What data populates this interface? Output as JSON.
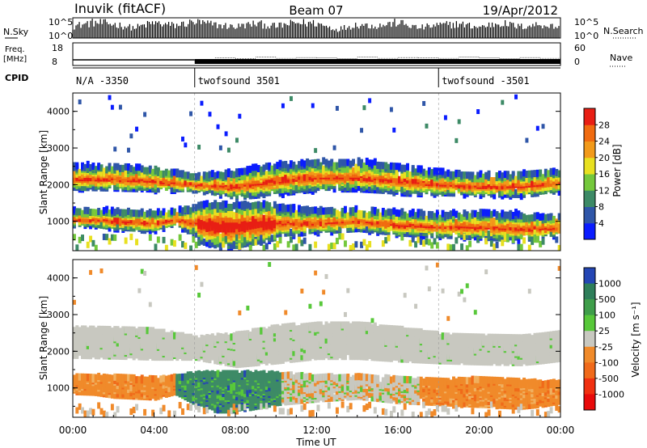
{
  "header": {
    "station": "Inuvik (fitACF)",
    "beam": "Beam 07",
    "date": "19/Apr/2012"
  },
  "nsky_panel": {
    "left_label": "N.Sky",
    "left_ticks": [
      "10^5",
      "10^0"
    ],
    "right_ticks": [
      "10^5",
      "10^0"
    ],
    "right_label": "N.Search"
  },
  "freq_panel": {
    "left_label_line1": "Freq.",
    "left_label_line2": "[MHz]",
    "left_ticks": [
      "18",
      "8"
    ],
    "right_ticks": [
      "60",
      "0"
    ],
    "right_label": "Nave"
  },
  "cpid_panel": {
    "label": "CPID",
    "segments": [
      {
        "start_h": 0,
        "text": "N/A -3350"
      },
      {
        "start_h": 6,
        "text": "twofsound 3501"
      },
      {
        "start_h": 18,
        "text": "twofsound -3501"
      }
    ]
  },
  "chart_data": [
    {
      "type": "heatmap",
      "title": "",
      "xlabel": "Time UT",
      "ylabel": "Slant Range [km]",
      "x_range_hours": [
        0,
        24
      ],
      "ylim": [
        200,
        4500
      ],
      "yticks": [
        "1000",
        "2000",
        "3000",
        "4000"
      ],
      "colorbar": {
        "label": "Power [dB]",
        "ticks": [
          "4",
          "8",
          "12",
          "16",
          "20",
          "24",
          "28"
        ],
        "colors": [
          "#0a1cff",
          "#2f56a8",
          "#3d8a66",
          "#74c83c",
          "#e8e020",
          "#f29a1a",
          "#f06b10",
          "#e81e14"
        ]
      },
      "bands": [
        {
          "name": "upper",
          "t": [
            0,
            2,
            4,
            5,
            6,
            8,
            10,
            12,
            14,
            16,
            18,
            20,
            22,
            23,
            24
          ],
          "center_km": [
            2200,
            2200,
            2150,
            2100,
            2050,
            2000,
            2150,
            2250,
            2250,
            2150,
            2050,
            2000,
            2000,
            2050,
            2100
          ],
          "width_km": [
            300,
            320,
            300,
            250,
            200,
            350,
            400,
            380,
            380,
            350,
            300,
            280,
            300,
            300,
            280
          ]
        },
        {
          "name": "lower",
          "t": [
            0,
            1,
            2,
            4,
            5,
            6,
            7,
            8,
            10,
            12,
            14,
            16,
            18,
            20,
            22,
            23,
            24
          ],
          "center_km": [
            1100,
            1100,
            1050,
            1000,
            1100,
            1000,
            900,
            900,
            1000,
            1000,
            1050,
            950,
            900,
            900,
            850,
            850,
            900
          ],
          "width_km": [
            200,
            220,
            250,
            250,
            200,
            400,
            500,
            500,
            400,
            300,
            280,
            300,
            300,
            350,
            350,
            300,
            250
          ]
        }
      ]
    },
    {
      "type": "heatmap",
      "title": "",
      "xlabel": "Time UT",
      "ylabel": "Slant Range [km]",
      "x_range_hours": [
        0,
        24
      ],
      "ylim": [
        200,
        4500
      ],
      "yticks": [
        "1000",
        "2000",
        "3000",
        "4000"
      ],
      "xticks": [
        "00:00",
        "04:00",
        "08:00",
        "12:00",
        "16:00",
        "20:00",
        "00:00"
      ],
      "colorbar": {
        "label": "Velocity [m s⁻¹]",
        "ticks": [
          "1000",
          "500",
          "100",
          "25",
          "-25",
          "-100",
          "-500",
          "-1000"
        ],
        "colors": [
          "#2446b4",
          "#2e7e5a",
          "#3f9e4a",
          "#58c83a",
          "#c8c8c0",
          "#f08a2a",
          "#f06a1a",
          "#f03010",
          "#e80a0a"
        ]
      },
      "regions": [
        {
          "label": "ground scatter",
          "color": "#c8c8c0",
          "hours": [
            0,
            24
          ],
          "center_km": 2150
        },
        {
          "label": "negative velocity",
          "color": "#f08a2a",
          "hours": [
            0,
            5.5
          ],
          "center_km": 1050
        },
        {
          "label": "positive velocity",
          "color": "#3d8a66",
          "hours": [
            5,
            10.2
          ],
          "center_km": 900
        },
        {
          "label": "negative velocity",
          "color": "#f08a2a",
          "hours": [
            17,
            24
          ],
          "center_km": 900
        }
      ]
    }
  ],
  "timeline": {
    "nsky_vals": [
      3.0,
      4.0,
      3.6,
      2.6,
      3.9,
      3.2,
      4.1,
      3.4,
      2.9,
      3.7,
      3.0,
      3.9,
      3.8,
      2.2,
      3.5,
      3.1,
      4.0,
      2.6,
      3.3,
      3.6,
      2.8,
      3.9,
      2.9,
      3.5,
      2.7
    ],
    "freq_hi_mhz": 10.5,
    "freq_low_mhz": 10.0,
    "nave_vals": [
      0,
      0,
      0,
      0,
      0,
      0,
      12,
      20,
      18,
      22,
      19,
      21,
      20,
      18,
      22,
      19,
      21,
      20,
      19,
      22,
      20,
      18,
      21,
      19,
      20
    ]
  }
}
